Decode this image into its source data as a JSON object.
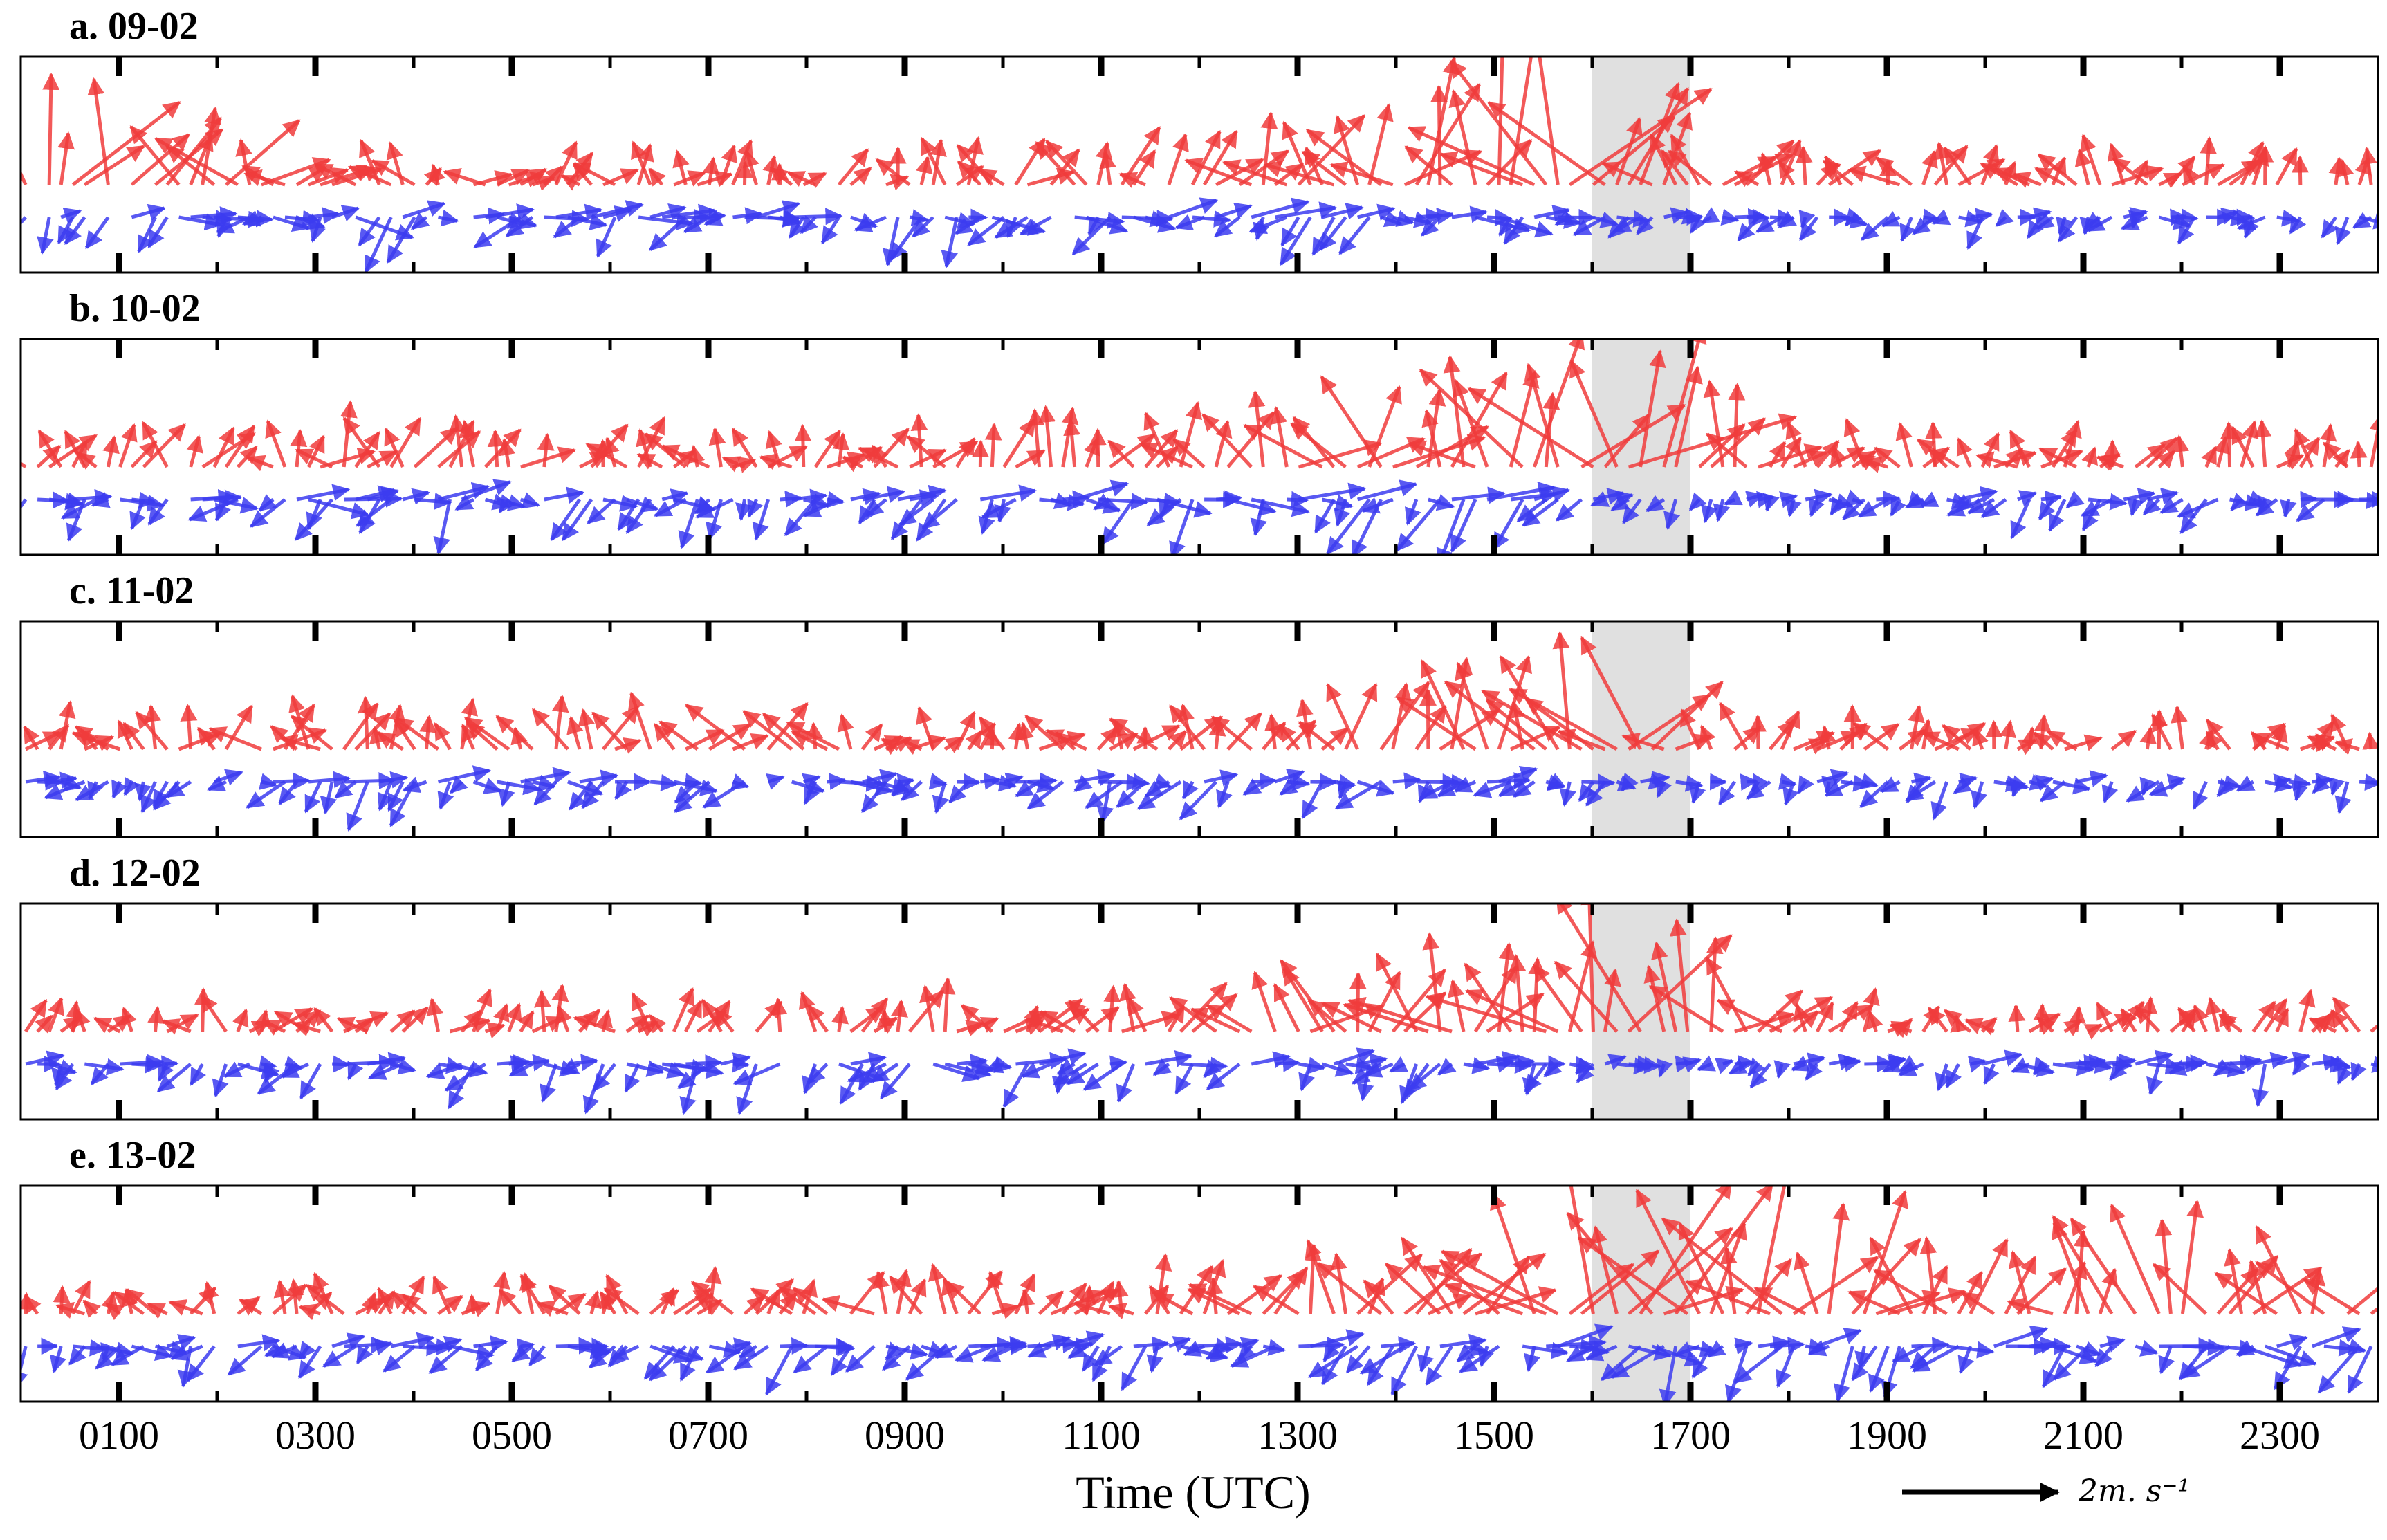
{
  "chart_data": {
    "type": "quiver",
    "xlabel": "Time (UTC)",
    "xlim": [
      0,
      24
    ],
    "xtick_labels": [
      "0100",
      "0300",
      "0500",
      "0700",
      "0900",
      "1100",
      "1300",
      "1500",
      "1700",
      "1900",
      "2100",
      "2300"
    ],
    "xtick_hours": [
      1,
      3,
      5,
      7,
      9,
      11,
      13,
      15,
      17,
      19,
      21,
      23
    ],
    "shaded_interval_hours": [
      16,
      17
    ],
    "scale_key": {
      "magnitude": 2,
      "label": "2m. s⁻¹"
    },
    "series_colors": {
      "upper": "#f03c3c",
      "lower": "#3c3cf0",
      "shade": "#e0e0e0",
      "frame": "#000000"
    },
    "panels": [
      {
        "title": "a. 09-02",
        "upper_profile": [
          [
            0,
            1.5
          ],
          [
            2,
            1.2
          ],
          [
            3,
            0.6
          ],
          [
            6,
            0.5
          ],
          [
            8,
            0.5
          ],
          [
            10,
            0.6
          ],
          [
            12,
            0.8
          ],
          [
            14,
            1.2
          ],
          [
            15,
            1.7
          ],
          [
            15.8,
            2.2
          ],
          [
            16.5,
            1.3
          ],
          [
            17.5,
            0.7
          ],
          [
            20,
            0.6
          ],
          [
            24,
            0.5
          ]
        ],
        "lower_profile": [
          [
            0,
            0.6
          ],
          [
            3,
            0.7
          ],
          [
            6,
            0.7
          ],
          [
            9,
            0.6
          ],
          [
            12,
            0.7
          ],
          [
            15,
            0.7
          ],
          [
            16.5,
            0.4
          ],
          [
            18,
            0.4
          ],
          [
            21,
            0.4
          ],
          [
            24,
            0.4
          ]
        ]
      },
      {
        "title": "b. 10-02",
        "upper_profile": [
          [
            0,
            0.6
          ],
          [
            3,
            0.7
          ],
          [
            6,
            0.6
          ],
          [
            8,
            0.5
          ],
          [
            10,
            0.6
          ],
          [
            12,
            0.8
          ],
          [
            14,
            1.2
          ],
          [
            15.5,
            1.6
          ],
          [
            16.5,
            2.0
          ],
          [
            17.2,
            1.0
          ],
          [
            18,
            0.6
          ],
          [
            21,
            0.5
          ],
          [
            24,
            0.6
          ]
        ],
        "lower_profile": [
          [
            0,
            0.6
          ],
          [
            3,
            0.7
          ],
          [
            6,
            0.6
          ],
          [
            9,
            0.6
          ],
          [
            12,
            0.8
          ],
          [
            15,
            0.8
          ],
          [
            16.5,
            0.4
          ],
          [
            18,
            0.4
          ],
          [
            21,
            0.5
          ],
          [
            24,
            0.5
          ]
        ]
      },
      {
        "title": "c. 11-02",
        "upper_profile": [
          [
            0,
            0.5
          ],
          [
            3,
            0.6
          ],
          [
            6,
            0.6
          ],
          [
            7,
            0.9
          ],
          [
            9,
            0.5
          ],
          [
            12,
            0.6
          ],
          [
            14,
            0.9
          ],
          [
            15.5,
            1.3
          ],
          [
            16.5,
            1.4
          ],
          [
            17.2,
            0.6
          ],
          [
            19,
            0.5
          ],
          [
            21,
            0.5
          ],
          [
            24,
            0.4
          ]
        ],
        "lower_profile": [
          [
            0,
            0.5
          ],
          [
            3,
            0.6
          ],
          [
            6,
            0.6
          ],
          [
            9,
            0.5
          ],
          [
            12,
            0.6
          ],
          [
            15,
            0.6
          ],
          [
            16.5,
            0.4
          ],
          [
            18,
            0.4
          ],
          [
            21,
            0.5
          ],
          [
            24,
            0.5
          ]
        ]
      },
      {
        "title": "d. 12-02",
        "upper_profile": [
          [
            0,
            0.4
          ],
          [
            3,
            0.5
          ],
          [
            6,
            0.5
          ],
          [
            8,
            0.5
          ],
          [
            10,
            0.6
          ],
          [
            12,
            0.8
          ],
          [
            14,
            1.1
          ],
          [
            15.5,
            1.3
          ],
          [
            16.5,
            1.7
          ],
          [
            17.2,
            1.0
          ],
          [
            19,
            0.4
          ],
          [
            21,
            0.4
          ],
          [
            24,
            0.5
          ]
        ],
        "lower_profile": [
          [
            0,
            0.5
          ],
          [
            3,
            0.6
          ],
          [
            6,
            0.6
          ],
          [
            9,
            0.6
          ],
          [
            12,
            0.6
          ],
          [
            15,
            0.5
          ],
          [
            16.5,
            0.4
          ],
          [
            18,
            0.4
          ],
          [
            21,
            0.5
          ],
          [
            24,
            0.5
          ]
        ]
      },
      {
        "title": "e. 13-02",
        "upper_profile": [
          [
            0,
            0.4
          ],
          [
            3,
            0.5
          ],
          [
            6,
            0.5
          ],
          [
            8,
            0.6
          ],
          [
            9,
            0.7
          ],
          [
            11,
            0.6
          ],
          [
            13,
            0.8
          ],
          [
            15,
            1.2
          ],
          [
            16,
            1.8
          ],
          [
            18,
            1.6
          ],
          [
            20,
            1.0
          ],
          [
            21.5,
            1.3
          ],
          [
            23,
            1.2
          ],
          [
            24,
            0.6
          ]
        ],
        "lower_profile": [
          [
            0,
            0.5
          ],
          [
            3,
            0.5
          ],
          [
            6,
            0.5
          ],
          [
            8,
            0.7
          ],
          [
            10,
            0.6
          ],
          [
            12,
            0.6
          ],
          [
            15,
            0.7
          ],
          [
            18,
            0.7
          ],
          [
            21,
            0.8
          ],
          [
            24,
            0.7
          ]
        ]
      }
    ]
  }
}
